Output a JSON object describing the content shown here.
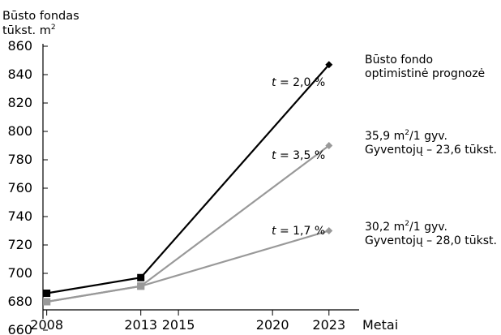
{
  "chart_data": {
    "type": "line",
    "ylabel_line1": "Būsto fondas",
    "ylabel_line2": "tūkst. m",
    "ylabel_sup": "2",
    "xlabel": "Metai",
    "x_ticks": [
      "2008",
      "2013",
      "2015",
      "2020",
      "2023"
    ],
    "y_ticks": [
      "660",
      "680",
      "700",
      "720",
      "740",
      "760",
      "780",
      "800",
      "820",
      "840",
      "860"
    ],
    "xlim": [
      2007.8,
      2024
    ],
    "ylim": [
      660,
      860
    ],
    "series": [
      {
        "color": "#000000",
        "marker": "square-then-diamond",
        "x": [
          2008,
          2013,
          2023
        ],
        "y": [
          686,
          697,
          847
        ]
      },
      {
        "color": "#999999",
        "marker": "square-then-diamond",
        "x": [
          2008,
          2013,
          2023
        ],
        "y": [
          680,
          691,
          790
        ]
      },
      {
        "color": "#999999",
        "marker": "square-then-diamond",
        "x": [
          2008,
          2013,
          2023
        ],
        "y": [
          680,
          691,
          730
        ]
      }
    ],
    "annotations": {
      "growth_1": {
        "var": "t",
        "text": " = 2,0 %"
      },
      "growth_2": {
        "var": "t",
        "text": " = 3,5 %"
      },
      "growth_3": {
        "var": "t",
        "text": " = 1,7 %"
      },
      "label_1": {
        "line1": "Būsto fondo",
        "line2": "optimistinė prognozė"
      },
      "label_2": {
        "line1a": "35,9 m",
        "sup": "2",
        "line1b": "/1 gyv.",
        "line2": "Gyventojų – 23,6 tūkst."
      },
      "label_3": {
        "line1a": "30,2 m",
        "sup": "2",
        "line1b": "/1 gyv.",
        "line2": "Gyventojų – 28,0 tūkst."
      }
    }
  },
  "colors": {
    "black": "#000000",
    "gray": "#999999"
  }
}
